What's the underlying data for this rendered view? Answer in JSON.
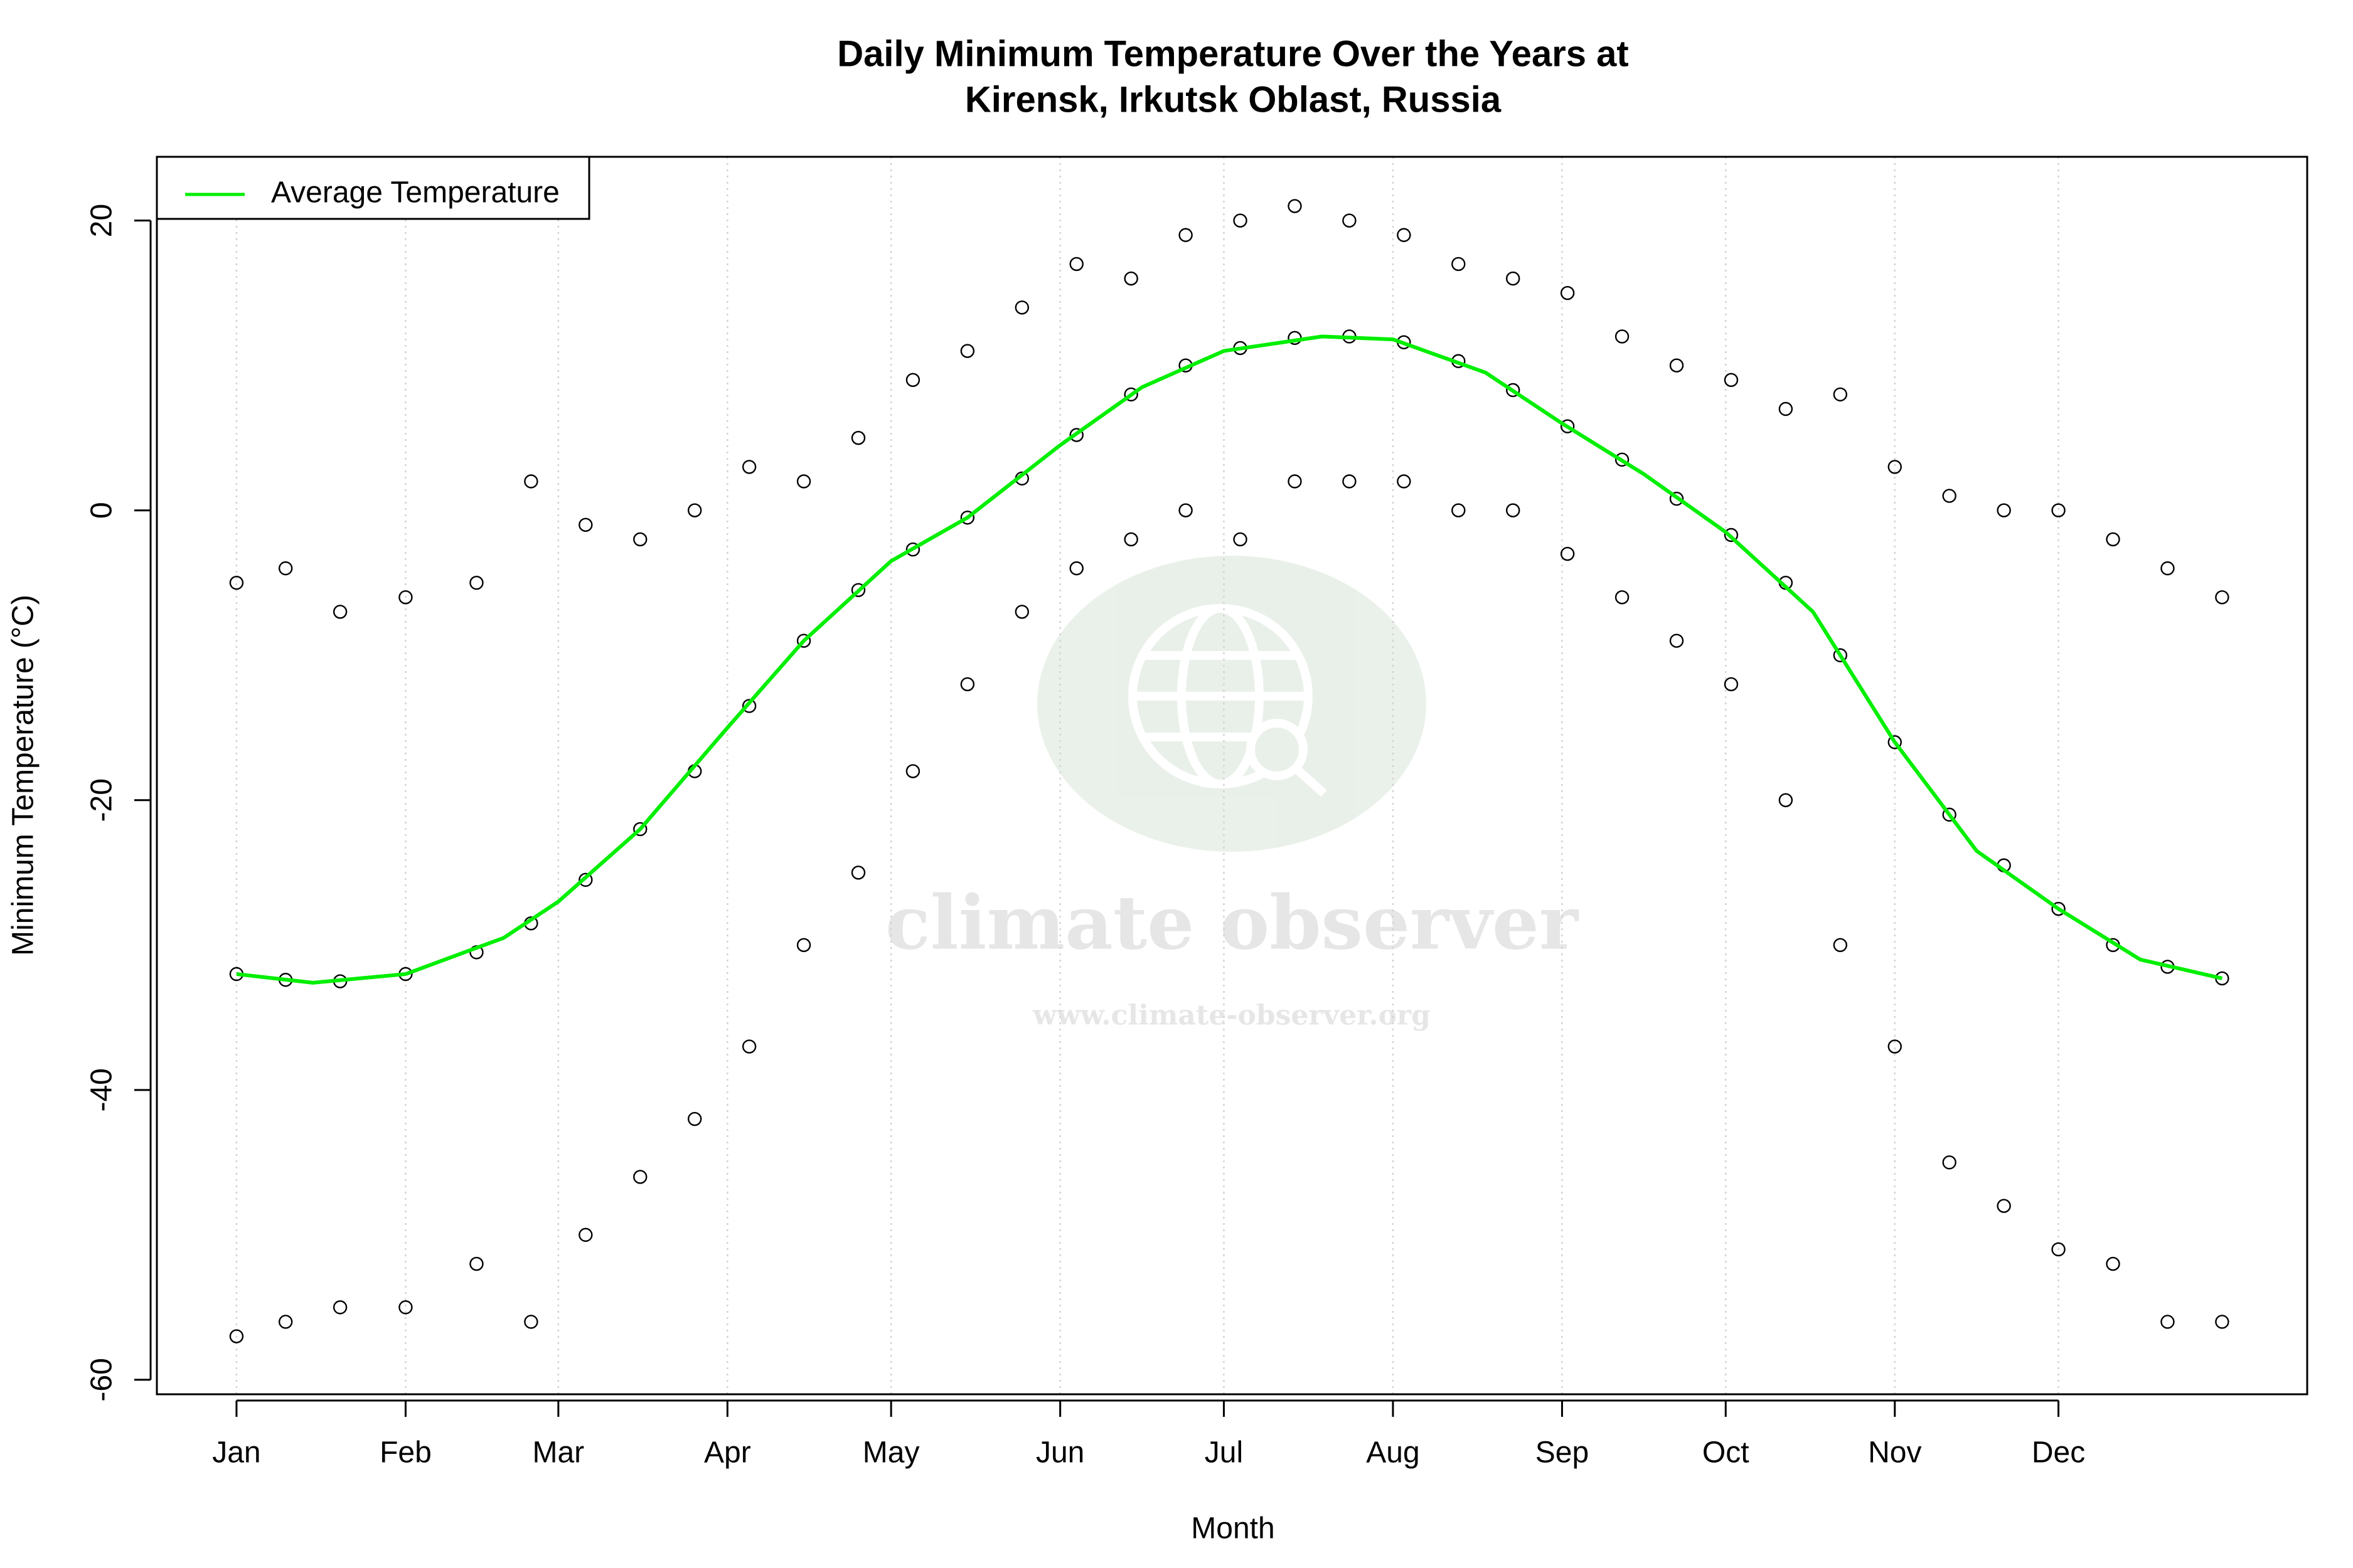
{
  "chart_data": {
    "type": "scatter",
    "title": "Daily Minimum Temperature Over the Years at",
    "subtitle": "Kirensk, Irkutsk Oblast, Russia",
    "x_label": "Month",
    "y_label": "Minimum Temperature (°C)",
    "watermark": {
      "text": "climate observer",
      "url": "www.climate-observer.org"
    },
    "xlim": [
      -13.6,
      380.6
    ],
    "ylim": [
      -61,
      24.4
    ],
    "xticks": [
      {
        "value": 1,
        "label": "Jan"
      },
      {
        "value": 32,
        "label": "Feb"
      },
      {
        "value": 60,
        "label": "Mar"
      },
      {
        "value": 91,
        "label": "Apr"
      },
      {
        "value": 121,
        "label": "May"
      },
      {
        "value": 152,
        "label": "Jun"
      },
      {
        "value": 182,
        "label": "Jul"
      },
      {
        "value": 213,
        "label": "Aug"
      },
      {
        "value": 244,
        "label": "Sep"
      },
      {
        "value": 274,
        "label": "Oct"
      },
      {
        "value": 305,
        "label": "Nov"
      },
      {
        "value": 335,
        "label": "Dec"
      }
    ],
    "yticks": [
      -60,
      -40,
      -20,
      0,
      20
    ],
    "grid": "x",
    "legend": "topleft",
    "series": [
      {
        "type": "scatter",
        "color": "#000000",
        "x": [
          1,
          10,
          20,
          32,
          45,
          55,
          65,
          75,
          85,
          95,
          105,
          115,
          125,
          135,
          145,
          155,
          165,
          175,
          185,
          195,
          205,
          215,
          225,
          235,
          245,
          255,
          265,
          275,
          285,
          295,
          305,
          315,
          325,
          335,
          345,
          355,
          365,
          1,
          10,
          20,
          32,
          45,
          55,
          65,
          75,
          85,
          95,
          105,
          115,
          125,
          135,
          145,
          155,
          165,
          175,
          185,
          195,
          205,
          215,
          225,
          235,
          245,
          255,
          265,
          275,
          285,
          295,
          305,
          315,
          325,
          335,
          345,
          355,
          365,
          1,
          10,
          20,
          32,
          45,
          55,
          65,
          75,
          85,
          95,
          105,
          115,
          125,
          135,
          145,
          155,
          165,
          175,
          185,
          195,
          205,
          215,
          225,
          235,
          245,
          255,
          265,
          275,
          285,
          295,
          305,
          315,
          325,
          335,
          345,
          355,
          365
        ],
        "values": [
          -5,
          -4,
          -7,
          -6,
          -5,
          2,
          -1,
          -2,
          0,
          3,
          2,
          5,
          9,
          11,
          14,
          17,
          16,
          19,
          20,
          21,
          20,
          19,
          17,
          16,
          15,
          12,
          10,
          9,
          7,
          8,
          3,
          1,
          0,
          0,
          -2,
          -4,
          -6,
          -32,
          -32.4,
          -32.5,
          -32,
          -30.5,
          -28.5,
          -25.5,
          -22,
          -18,
          -13.5,
          -9,
          -5.5,
          -2.7,
          -0.5,
          2.2,
          5.2,
          8,
          10,
          11.2,
          11.9,
          12,
          11.6,
          10.3,
          8.3,
          5.8,
          3.5,
          0.8,
          -1.7,
          -5,
          -10,
          -16,
          -21,
          -24.5,
          -27.5,
          -30,
          -31.5,
          -32.3,
          -57,
          -56,
          -55,
          -55,
          -52,
          -56,
          -50,
          -46,
          -42,
          -37,
          -30,
          -25,
          -18,
          -12,
          -7,
          -4,
          -2,
          0,
          -2,
          2,
          2,
          2,
          0,
          0,
          -3,
          -6,
          -9,
          -12,
          -20,
          -30,
          -37,
          -45,
          -48,
          -51,
          -52,
          -56,
          -56
        ]
      },
      {
        "type": "line",
        "name": "Average Temperature",
        "color": "#00ee00",
        "x": [
          1,
          15,
          32,
          50,
          60,
          75,
          91,
          105,
          121,
          135,
          152,
          167,
          182,
          200,
          213,
          230,
          244,
          259,
          274,
          290,
          305,
          320,
          335,
          350,
          365
        ],
        "values": [
          -32,
          -32.6,
          -32,
          -29.5,
          -27,
          -22,
          -15,
          -9,
          -3.5,
          -0.5,
          4.5,
          8.5,
          11,
          12,
          11.8,
          9.5,
          6,
          2.5,
          -1.5,
          -7,
          -16,
          -23.5,
          -27.5,
          -31,
          -32.3
        ]
      }
    ]
  }
}
